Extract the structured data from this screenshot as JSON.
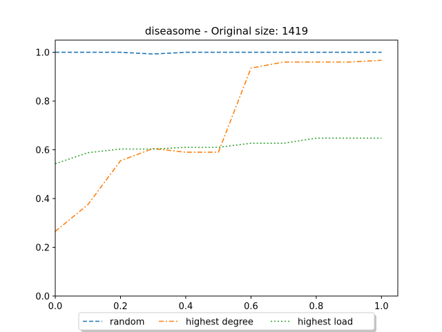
{
  "chart_data": {
    "type": "line",
    "title": "diseasome - Original size: 1419",
    "xlabel": "",
    "ylabel": "",
    "xlim": [
      0.0,
      1.05
    ],
    "ylim": [
      0.0,
      1.05
    ],
    "xticks": [
      "0.0",
      "0.2",
      "0.4",
      "0.6",
      "0.8",
      "1.0"
    ],
    "yticks": [
      "0.0",
      "0.2",
      "0.4",
      "0.6",
      "0.8",
      "1.0"
    ],
    "x": [
      0.0,
      0.1,
      0.2,
      0.3,
      0.4,
      0.5,
      0.6,
      0.7,
      0.8,
      0.9,
      1.0
    ],
    "grid": false,
    "legend_position": "bottom-center-outside",
    "series": [
      {
        "name": "random",
        "color": "#1f77b4",
        "style": "dashed",
        "values": [
          1.0,
          1.0,
          1.0,
          0.993,
          1.0,
          1.0,
          1.0,
          1.0,
          1.0,
          1.0,
          1.0
        ]
      },
      {
        "name": "highest degree",
        "color": "#ff7f0e",
        "style": "dashdot",
        "values": [
          0.265,
          0.375,
          0.555,
          0.605,
          0.59,
          0.59,
          0.935,
          0.96,
          0.96,
          0.96,
          0.967
        ]
      },
      {
        "name": "highest load",
        "color": "#2ca02c",
        "style": "dotted",
        "values": [
          0.543,
          0.588,
          0.603,
          0.603,
          0.61,
          0.61,
          0.627,
          0.627,
          0.648,
          0.648,
          0.648
        ]
      }
    ]
  }
}
